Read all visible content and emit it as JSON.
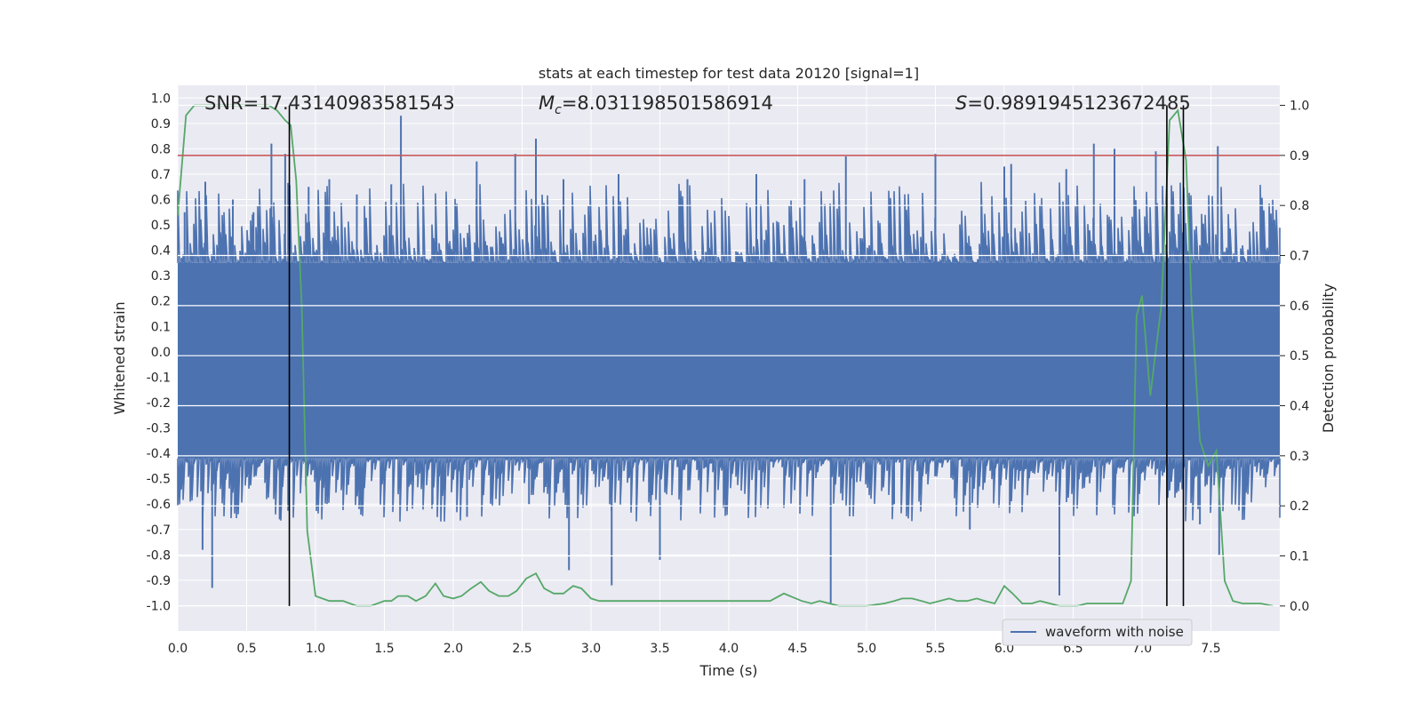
{
  "chart_data": {
    "type": "line",
    "title": "stats at each timestep for test data 20120 [signal=1]",
    "xlabel": "Time (s)",
    "ylabel": "Whitened strain",
    "y2label": "Detection probability",
    "xlim": [
      0.0,
      8.0
    ],
    "ylim": [
      -1.1,
      1.05
    ],
    "y2lim": [
      -0.05,
      1.04
    ],
    "xticks": [
      "0.0",
      "0.5",
      "1.0",
      "1.5",
      "2.0",
      "2.5",
      "3.0",
      "3.5",
      "4.0",
      "4.5",
      "5.0",
      "5.5",
      "6.0",
      "6.5",
      "7.0",
      "7.5"
    ],
    "yticks": [
      "1.0",
      "0.9",
      "0.8",
      "0.7",
      "0.6",
      "0.5",
      "0.4",
      "0.3",
      "0.2",
      "0.1",
      "0.0",
      "-0.1",
      "-0.2",
      "-0.3",
      "-0.4",
      "-0.5",
      "-0.6",
      "-0.7",
      "-0.8",
      "-0.9",
      "-1.0"
    ],
    "y2ticks": [
      "1.0",
      "0.9",
      "0.8",
      "0.7",
      "0.6",
      "0.5",
      "0.4",
      "0.3",
      "0.2",
      "0.1",
      "0.0"
    ],
    "grid": true,
    "legend": {
      "entries": [
        "waveform with noise"
      ],
      "placement": "lower-right"
    },
    "annotations": {
      "snr": "SNR=17.43140983581543",
      "mc_symbol": "M",
      "mc_sub": "c",
      "mc_value": "=8.031198501586914",
      "s_symbol": "S",
      "s_value": "=0.9891945123672485"
    },
    "colors": {
      "waveform": "#4c72b0",
      "probability": "#55a868",
      "threshold": "#c44e52",
      "markers": "#000000",
      "background": "#eaeaf2",
      "grid": "#ffffff"
    },
    "threshold": 0.9,
    "vertical_markers": [
      0.81,
      7.18,
      7.3
    ],
    "series": [
      {
        "name": "waveform with noise",
        "axis": "left",
        "noise_band": [
          -0.42,
          0.35
        ],
        "spikes": [
          {
            "x": 0.05,
            "y": 0.55
          },
          {
            "x": 0.2,
            "y": 0.67
          },
          {
            "x": 0.25,
            "y": -0.93
          },
          {
            "x": 0.18,
            "y": -0.78
          },
          {
            "x": 0.4,
            "y": 0.6
          },
          {
            "x": 0.55,
            "y": 0.55
          },
          {
            "x": 0.68,
            "y": 0.82
          },
          {
            "x": 0.74,
            "y": -0.66
          },
          {
            "x": 0.78,
            "y": 0.78
          },
          {
            "x": 0.95,
            "y": 0.65
          },
          {
            "x": 1.1,
            "y": 0.68
          },
          {
            "x": 1.3,
            "y": 0.62
          },
          {
            "x": 1.55,
            "y": 0.66
          },
          {
            "x": 1.62,
            "y": 0.93
          },
          {
            "x": 1.63,
            "y": 0.12
          },
          {
            "x": 1.85,
            "y": -0.6
          },
          {
            "x": 2.1,
            "y": -0.65
          },
          {
            "x": 2.17,
            "y": 0.75
          },
          {
            "x": 2.45,
            "y": 0.78
          },
          {
            "x": 2.55,
            "y": -0.6
          },
          {
            "x": 2.6,
            "y": 0.84
          },
          {
            "x": 2.8,
            "y": 0.68
          },
          {
            "x": 2.84,
            "y": -0.86
          },
          {
            "x": 3.15,
            "y": -0.92
          },
          {
            "x": 3.2,
            "y": 0.7
          },
          {
            "x": 3.5,
            "y": -0.82
          },
          {
            "x": 3.7,
            "y": 0.68
          },
          {
            "x": 4.2,
            "y": 0.7
          },
          {
            "x": 4.55,
            "y": 0.68
          },
          {
            "x": 4.74,
            "y": -0.99
          },
          {
            "x": 4.85,
            "y": 0.77
          },
          {
            "x": 5.2,
            "y": -0.6
          },
          {
            "x": 5.5,
            "y": 0.78
          },
          {
            "x": 5.75,
            "y": -0.7
          },
          {
            "x": 6.0,
            "y": 0.73
          },
          {
            "x": 6.05,
            "y": 0.74
          },
          {
            "x": 6.4,
            "y": -0.96
          },
          {
            "x": 6.45,
            "y": 0.72
          },
          {
            "x": 6.65,
            "y": 0.82
          },
          {
            "x": 6.8,
            "y": 0.8
          },
          {
            "x": 7.1,
            "y": 0.79
          },
          {
            "x": 7.2,
            "y": -0.5
          },
          {
            "x": 7.42,
            "y": -0.68
          },
          {
            "x": 7.55,
            "y": 0.81
          },
          {
            "x": 7.56,
            "y": -0.8
          }
        ]
      },
      {
        "name": "",
        "axis": "right",
        "x": [
          0.0,
          0.06,
          0.12,
          0.2,
          0.3,
          0.4,
          0.5,
          0.6,
          0.66,
          0.72,
          0.78,
          0.82,
          0.86,
          0.9,
          0.94,
          1.0,
          1.1,
          1.2,
          1.3,
          1.4,
          1.5,
          1.55,
          1.6,
          1.67,
          1.73,
          1.8,
          1.87,
          1.93,
          2.0,
          2.06,
          2.13,
          2.2,
          2.26,
          2.33,
          2.4,
          2.46,
          2.53,
          2.6,
          2.66,
          2.73,
          2.8,
          2.87,
          2.93,
          3.0,
          3.06,
          3.2,
          3.4,
          3.6,
          3.8,
          4.0,
          4.2,
          4.3,
          4.4,
          4.46,
          4.53,
          4.6,
          4.66,
          4.73,
          4.8,
          5.0,
          5.13,
          5.2,
          5.26,
          5.33,
          5.4,
          5.46,
          5.53,
          5.6,
          5.66,
          5.73,
          5.8,
          5.86,
          5.93,
          6.0,
          6.06,
          6.13,
          6.2,
          6.26,
          6.33,
          6.4,
          6.46,
          6.53,
          6.6,
          6.66,
          6.73,
          6.8,
          6.86,
          6.92,
          6.96,
          7.0,
          7.06,
          7.14,
          7.2,
          7.26,
          7.32,
          7.36,
          7.42,
          7.48,
          7.54,
          7.6,
          7.66,
          7.73,
          7.8,
          7.86,
          7.95
        ],
        "y": [
          0.78,
          0.98,
          1.0,
          1.0,
          1.0,
          1.0,
          1.0,
          1.0,
          1.0,
          0.99,
          0.97,
          0.96,
          0.85,
          0.6,
          0.15,
          0.02,
          0.01,
          0.01,
          0.0,
          0.0,
          0.01,
          0.01,
          0.02,
          0.02,
          0.01,
          0.02,
          0.045,
          0.02,
          0.015,
          0.02,
          0.035,
          0.048,
          0.03,
          0.02,
          0.02,
          0.03,
          0.055,
          0.065,
          0.035,
          0.025,
          0.025,
          0.04,
          0.035,
          0.015,
          0.01,
          0.01,
          0.01,
          0.01,
          0.01,
          0.01,
          0.01,
          0.01,
          0.025,
          0.018,
          0.01,
          0.005,
          0.01,
          0.005,
          0.0,
          0.0,
          0.005,
          0.01,
          0.015,
          0.015,
          0.01,
          0.005,
          0.01,
          0.015,
          0.01,
          0.01,
          0.015,
          0.01,
          0.005,
          0.04,
          0.025,
          0.005,
          0.005,
          0.01,
          0.005,
          0.0,
          0.0,
          0.0,
          0.005,
          0.005,
          0.005,
          0.005,
          0.005,
          0.05,
          0.58,
          0.62,
          0.42,
          0.6,
          0.97,
          0.99,
          0.89,
          0.6,
          0.33,
          0.28,
          0.31,
          0.05,
          0.01,
          0.005,
          0.005,
          0.005,
          0.0
        ]
      }
    ]
  }
}
